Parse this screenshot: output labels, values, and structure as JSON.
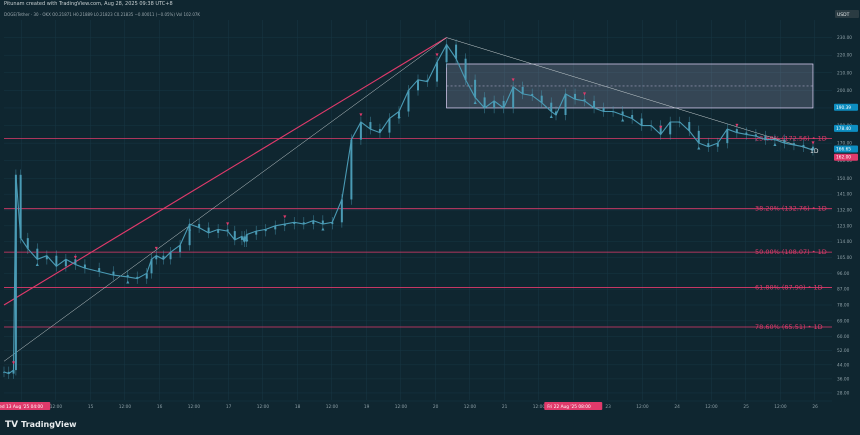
{
  "header": {
    "caption": "Pitunam created with TradingView.com, Aug 28, 2025 09:38 UTC+8",
    "legend": "DOGE/Tether · 30 · OKX  O0.21871  H0.21889  L0.21823  C0.21835  −0.00011 (−0.05%)  Vol 102.07K"
  },
  "footer": {
    "brand_mark": "TV",
    "brand_name": "TradingView"
  },
  "colors": {
    "background": "#0f2630",
    "grid": "#173744",
    "candle": "#4a9bb5",
    "fib": "#e03a6b",
    "trend_pink": "#e03a6b",
    "trend_white": "#c9d1d3",
    "marker": "#e03a6b",
    "range_box": "#e6d9ff",
    "price_tag": "#0d8ec1",
    "current_tag": "#e03a6b"
  },
  "chart_data": {
    "type": "candlestick",
    "symbol": "DOGE/Tether",
    "interval": "30",
    "exchange": "OKX",
    "currency": "USDT",
    "x_ticks": [
      "Wed 13 Aug '25 04:00",
      "12:00",
      "15",
      "12:00",
      "16",
      "12:00",
      "17",
      "12:00",
      "18",
      "12:00",
      "19",
      "12:00",
      "20",
      "12:00",
      "21",
      "12:00",
      "Fri 22 Aug '25 08:00",
      "23",
      "12:00",
      "24",
      "12:00",
      "25",
      "12:00",
      "26"
    ],
    "price_ticks": [
      "230.00",
      "220.00",
      "210.00",
      "200.00",
      "190.00",
      "180.00",
      "170.00",
      "160.00",
      "150.00",
      "141.00",
      "132.00",
      "123.00",
      "114.00",
      "105.00",
      "96.00",
      "87.00",
      "78.00",
      "69.00",
      "60.00",
      "52.00",
      "44.00",
      "36.00",
      "28.00"
    ],
    "price_tags": [
      {
        "label": "190.39",
        "kind": "price"
      },
      {
        "label": "178.40",
        "kind": "price"
      },
      {
        "label": "166.65",
        "kind": "price"
      },
      {
        "label": "162.00",
        "kind": "current"
      }
    ],
    "fib_levels": [
      {
        "ratio": "23.60%",
        "value": "172.56",
        "label": "23.60% (172.56) • 1D"
      },
      {
        "ratio": "38.20%",
        "value": "132.76",
        "label": "38.20% (132.76) • 1D"
      },
      {
        "ratio": "50.00%",
        "value": "108.07",
        "label": "50.00% (108.07) • 1D"
      },
      {
        "ratio": "61.80%",
        "value": "87.90",
        "label": "61.80% (87.90) • 1D"
      },
      {
        "ratio": "78.60%",
        "value": "65.51",
        "label": "78.60% (65.51) • 1D"
      }
    ],
    "annotations": [
      {
        "text": "1D",
        "kind": "end-label"
      }
    ],
    "series": [
      {
        "name": "DOGE/Tether",
        "x": [
          0,
          0.1,
          0.2,
          0.25,
          0.35,
          0.5,
          0.7,
          0.9,
          1.1,
          1.3,
          1.5,
          1.7,
          2.0,
          2.3,
          2.6,
          2.8,
          3.0,
          3.1,
          3.2,
          3.35,
          3.5,
          3.7,
          3.9,
          4.1,
          4.3,
          4.5,
          4.7,
          4.85,
          5.0,
          5.05,
          5.1,
          5.3,
          5.5,
          5.7,
          5.9,
          6.1,
          6.3,
          6.5,
          6.7,
          6.9,
          7.1,
          7.3,
          7.5,
          7.7,
          7.9,
          8.1,
          8.3,
          8.5,
          8.7,
          8.9,
          9.1,
          9.3,
          9.5,
          9.7,
          9.9,
          10.1,
          10.3,
          10.5,
          10.7,
          10.9,
          11.1,
          11.3,
          11.5,
          11.6,
          11.8,
          12.0,
          12.2,
          12.4,
          12.6,
          12.8,
          13.0,
          13.2,
          13.4,
          13.6,
          13.8,
          14.0,
          14.2,
          14.4,
          14.6,
          14.8,
          15.0,
          15.2,
          15.4,
          15.6,
          15.8,
          16.0,
          16.2,
          16.4,
          16.6,
          16.8,
          17.0
        ],
        "values": [
          40,
          39,
          41,
          152,
          116,
          110,
          104,
          106,
          100,
          104,
          101,
          99,
          97,
          95,
          94,
          93,
          96,
          104,
          106,
          104,
          108,
          112,
          124,
          122,
          119,
          121,
          120,
          115,
          117,
          114,
          118,
          120,
          121,
          123,
          124,
          125,
          124,
          126,
          124,
          125,
          138,
          172,
          182,
          178,
          176,
          184,
          188,
          200,
          206,
          205,
          216,
          226,
          218,
          206,
          196,
          190,
          194,
          190,
          202,
          198,
          197,
          193,
          188,
          186,
          198,
          195,
          194,
          190,
          188,
          188,
          186,
          184,
          180,
          180,
          175,
          182,
          182,
          177,
          170,
          168,
          170,
          178,
          176,
          175,
          174,
          172,
          172,
          170,
          169,
          168,
          166
        ]
      }
    ],
    "trendlines": [
      {
        "name": "pink-rising",
        "from": [
          0,
          78
        ],
        "to": [
          9.3,
          230
        ]
      },
      {
        "name": "white-rising",
        "from": [
          0,
          46
        ],
        "to": [
          9.3,
          230
        ]
      },
      {
        "name": "white-falling",
        "from": [
          9.3,
          230
        ],
        "to": [
          17,
          166
        ]
      }
    ],
    "range_box": {
      "from_x": 9.3,
      "to_x": 17.0,
      "top": 215,
      "bottom": 190
    },
    "y_range": [
      24,
      240
    ],
    "x_range": [
      0,
      17.4
    ],
    "grid": true
  }
}
